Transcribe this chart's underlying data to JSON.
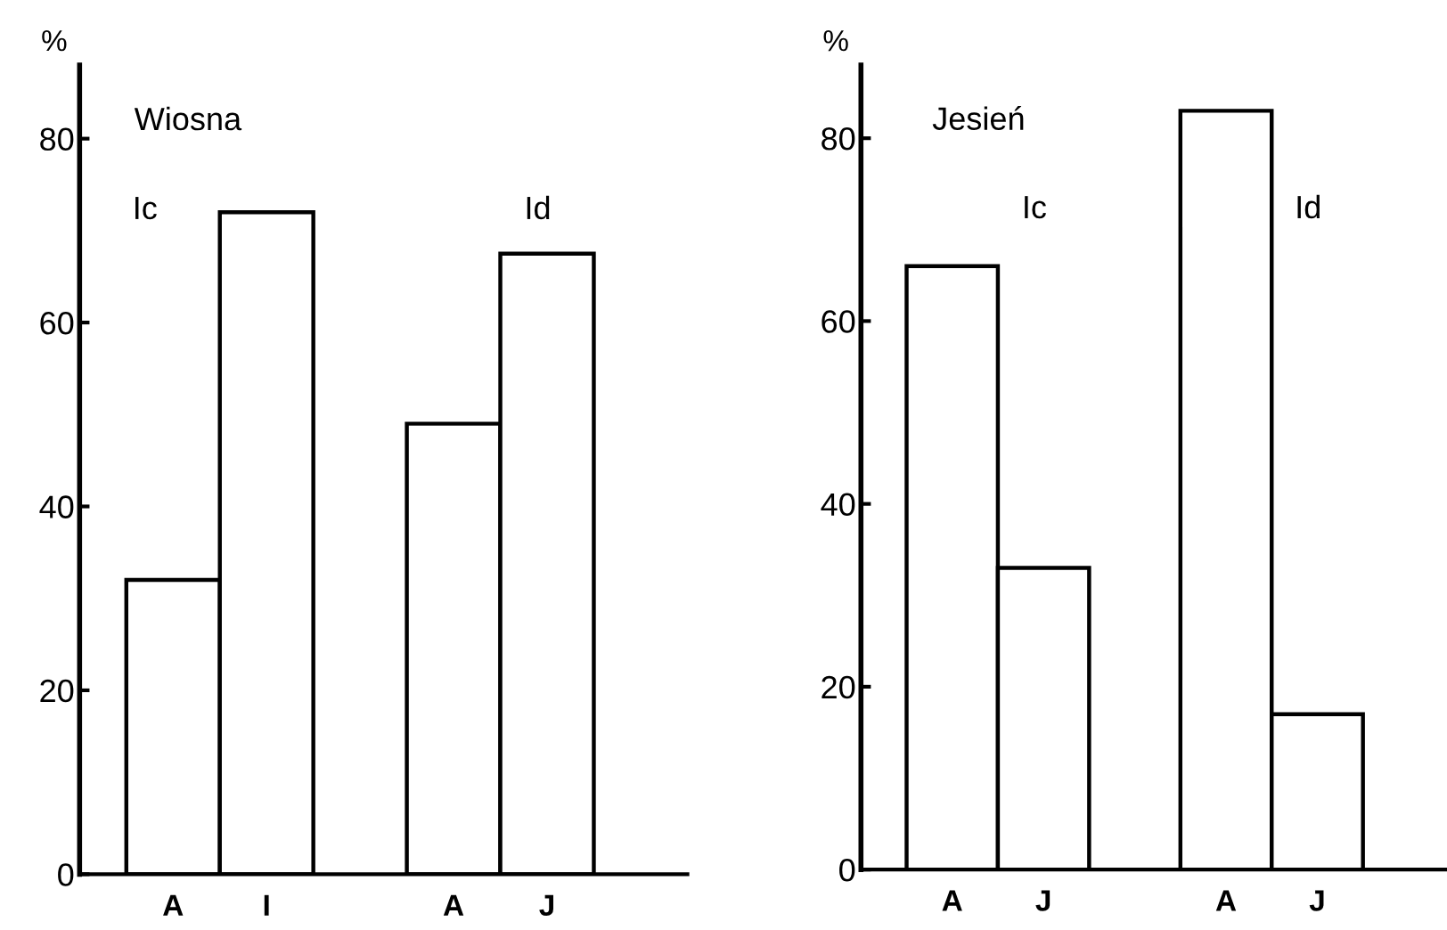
{
  "chart_data": [
    {
      "type": "bar",
      "title": "Wiosna",
      "ylabel": "%",
      "categories": [
        "A",
        "I",
        "A",
        "J"
      ],
      "values": [
        32,
        72,
        49,
        67.5
      ],
      "color": "#ffffff",
      "ylim": [
        0,
        88
      ],
      "yticks": [
        0,
        20,
        40,
        60,
        80
      ],
      "grid": false,
      "legend": false,
      "annotations": [
        "Ic",
        "Id"
      ]
    },
    {
      "type": "bar",
      "title": "Jesień",
      "ylabel": "%",
      "categories": [
        "A",
        "J",
        "A",
        "J"
      ],
      "values": [
        66,
        33,
        83,
        17
      ],
      "color": "#ffffff",
      "ylim": [
        0,
        88
      ],
      "yticks": [
        0,
        20,
        40,
        60,
        80
      ],
      "grid": false,
      "legend": false,
      "annotations": [
        "Ic",
        "Id"
      ]
    }
  ]
}
